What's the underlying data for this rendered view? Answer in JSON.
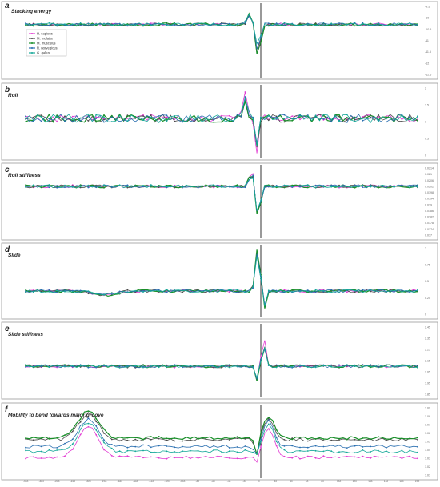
{
  "colors": {
    "H. sapiens": "#e23bd3",
    "M. mulatta": "#4a4a4a",
    "M. musculus": "#1a8f2a",
    "R. norvegicus": "#2a6fb0",
    "G. gallus": "#17a89a"
  },
  "legend": [
    "H. sapiens",
    "M. mulatta",
    "M. musculus",
    "R. norvegicus",
    "G. gallus"
  ],
  "panels": [
    {
      "label": "a",
      "title": "Stacking energy",
      "yticks": [
        "-9.5",
        "-10",
        "-10.5",
        "-11",
        "-11.5",
        "-12",
        "-12.5"
      ]
    },
    {
      "label": "b",
      "title": "Roll",
      "yticks": [
        "2",
        "1.5",
        "1",
        "0.5",
        "0"
      ]
    },
    {
      "label": "c",
      "title": "Roll stiffness",
      "yticks": [
        "0.0214",
        "0.021",
        "0.0206",
        "0.0202",
        "0.0198",
        "0.0194",
        "0.019",
        "0.0186",
        "0.0182",
        "0.0178",
        "0.0174",
        "0.017"
      ]
    },
    {
      "label": "d",
      "title": "Slide",
      "yticks": [
        "1",
        "0.75",
        "0.5",
        "0.25",
        "0"
      ]
    },
    {
      "label": "e",
      "title": "Slide stiffness",
      "yticks": [
        "2.45",
        "2.35",
        "2.25",
        "2.15",
        "2.05",
        "1.95",
        "1.85"
      ]
    },
    {
      "label": "f",
      "title": "Mobility to bend towards major groove",
      "yticks": [
        "1.09",
        "1.08",
        "1.07",
        "1.06",
        "1.05",
        "1.04",
        "1.03",
        "1.02",
        "1.01"
      ]
    }
  ],
  "xticks": [
    "-300",
    "-280",
    "-260",
    "-240",
    "-220",
    "-200",
    "-180",
    "-160",
    "-140",
    "-120",
    "-100",
    "-80",
    "-60",
    "-40",
    "-20",
    "0",
    "20",
    "40",
    "60",
    "80",
    "100",
    "120",
    "140",
    "160",
    "180",
    "200"
  ],
  "chart_data": {
    "type": "line",
    "x_range": [
      -300,
      200
    ],
    "tss_marker_x": 0,
    "series_names": [
      "H. sapiens",
      "M. mulatta",
      "M. musculus",
      "R. norvegicus",
      "G. gallus"
    ],
    "panels": [
      {
        "title": "Stacking energy",
        "ylim": [
          -12.5,
          -9.5
        ],
        "baseline": -10.3,
        "dip_x": -3,
        "dip_values": [
          -12.3,
          -12.1,
          -12.4,
          -12.0,
          -11.7
        ],
        "peak_x": -15,
        "peak_values": [
          -9.8,
          -9.9,
          -9.8,
          -9.9,
          -9.9
        ]
      },
      {
        "title": "Roll",
        "ylim": [
          0,
          2
        ],
        "baseline": 1.1,
        "dip_x": -5,
        "dip_values": [
          0.1,
          0.3,
          0.4,
          0.3,
          0.4
        ],
        "peak_x": -20,
        "peak_values": [
          1.9,
          1.7,
          1.6,
          1.7,
          1.6
        ]
      },
      {
        "title": "Roll stiffness",
        "ylim": [
          0.017,
          0.0214
        ],
        "baseline": 0.0202,
        "dip_x": -3,
        "dip_values": [
          0.0176,
          0.0176,
          0.0173,
          0.0175,
          0.0176
        ],
        "peak_x": -12,
        "peak_values": [
          0.0212,
          0.0211,
          0.0211,
          0.021,
          0.021
        ]
      },
      {
        "title": "Slide",
        "ylim": [
          0,
          1
        ],
        "baseline": 0.35,
        "dip_x": 5,
        "dip_values": [
          0.1,
          0.12,
          0.1,
          0.12,
          0.12
        ],
        "peak_x": -4,
        "peak_values": [
          0.95,
          0.93,
          1.0,
          0.95,
          0.92
        ]
      },
      {
        "title": "Slide stiffness",
        "ylim": [
          1.85,
          2.45
        ],
        "baseline": 2.1,
        "dip_x": -3,
        "dip_values": [
          1.9,
          1.92,
          1.88,
          1.91,
          1.92
        ],
        "peak_x": 3,
        "peak_values": [
          2.38,
          2.33,
          2.32,
          2.31,
          2.3
        ]
      },
      {
        "title": "Mobility to bend towards major groove",
        "ylim": [
          1.01,
          1.09
        ],
        "baselines": [
          1.031,
          1.052,
          1.054,
          1.044,
          1.038
        ],
        "hump_x": -220,
        "hump_values": [
          1.068,
          1.083,
          1.086,
          1.076,
          1.072
        ],
        "peak_x": 10,
        "peak_values": [
          1.066,
          1.078,
          1.08,
          1.074,
          1.071
        ],
        "dip_x": -5,
        "dip_values": [
          1.02,
          1.03,
          1.03,
          1.03,
          1.03
        ]
      }
    ]
  }
}
